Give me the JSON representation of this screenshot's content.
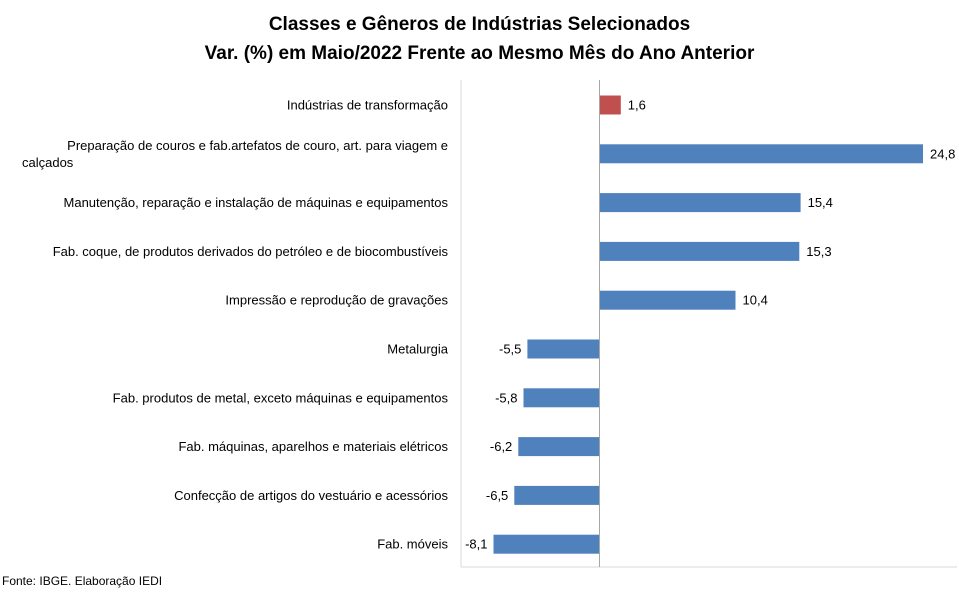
{
  "chart_data": {
    "type": "bar",
    "orientation": "horizontal",
    "title": "Classes e Gêneros de Indústrias Selecionados",
    "subtitle": "Var. (%) em Maio/2022 Frente ao Mesmo Mês do Ano Anterior",
    "categories": [
      "Indústrias de transformação",
      "Preparação de couros e fab.artefatos de couro, art. para viagem e calçados",
      "Manutenção, reparação e instalação de máquinas e equipamentos",
      "Fab. coque, de produtos derivados do petróleo e de biocombustíveis",
      "Impressão e reprodução de gravações",
      "Metalurgia",
      "Fab. produtos de metal, exceto máquinas e equipamentos",
      "Fab. máquinas, aparelhos e materiais elétricos",
      "Confecção de artigos do vestuário e acessórios",
      "Fab. móveis"
    ],
    "values": [
      1.6,
      24.8,
      15.4,
      15.3,
      10.4,
      -5.5,
      -5.8,
      -6.2,
      -6.5,
      -8.1
    ],
    "value_labels": [
      "1,6",
      "24,8",
      "15,4",
      "15,3",
      "10,4",
      "-5,5",
      "-5,8",
      "-6,2",
      "-6,5",
      "-8,1"
    ],
    "highlight_index": 0,
    "xlim": [
      -8.1,
      24.8
    ],
    "grid": false,
    "legend": "none",
    "colors": {
      "bar": "#4F81BD",
      "highlight": "#C0504D",
      "axis": "#A6A6A6",
      "plot_border": "#D9D9D9"
    }
  },
  "footer": {
    "source": "Fonte: IBGE. Elaboração IEDI"
  }
}
